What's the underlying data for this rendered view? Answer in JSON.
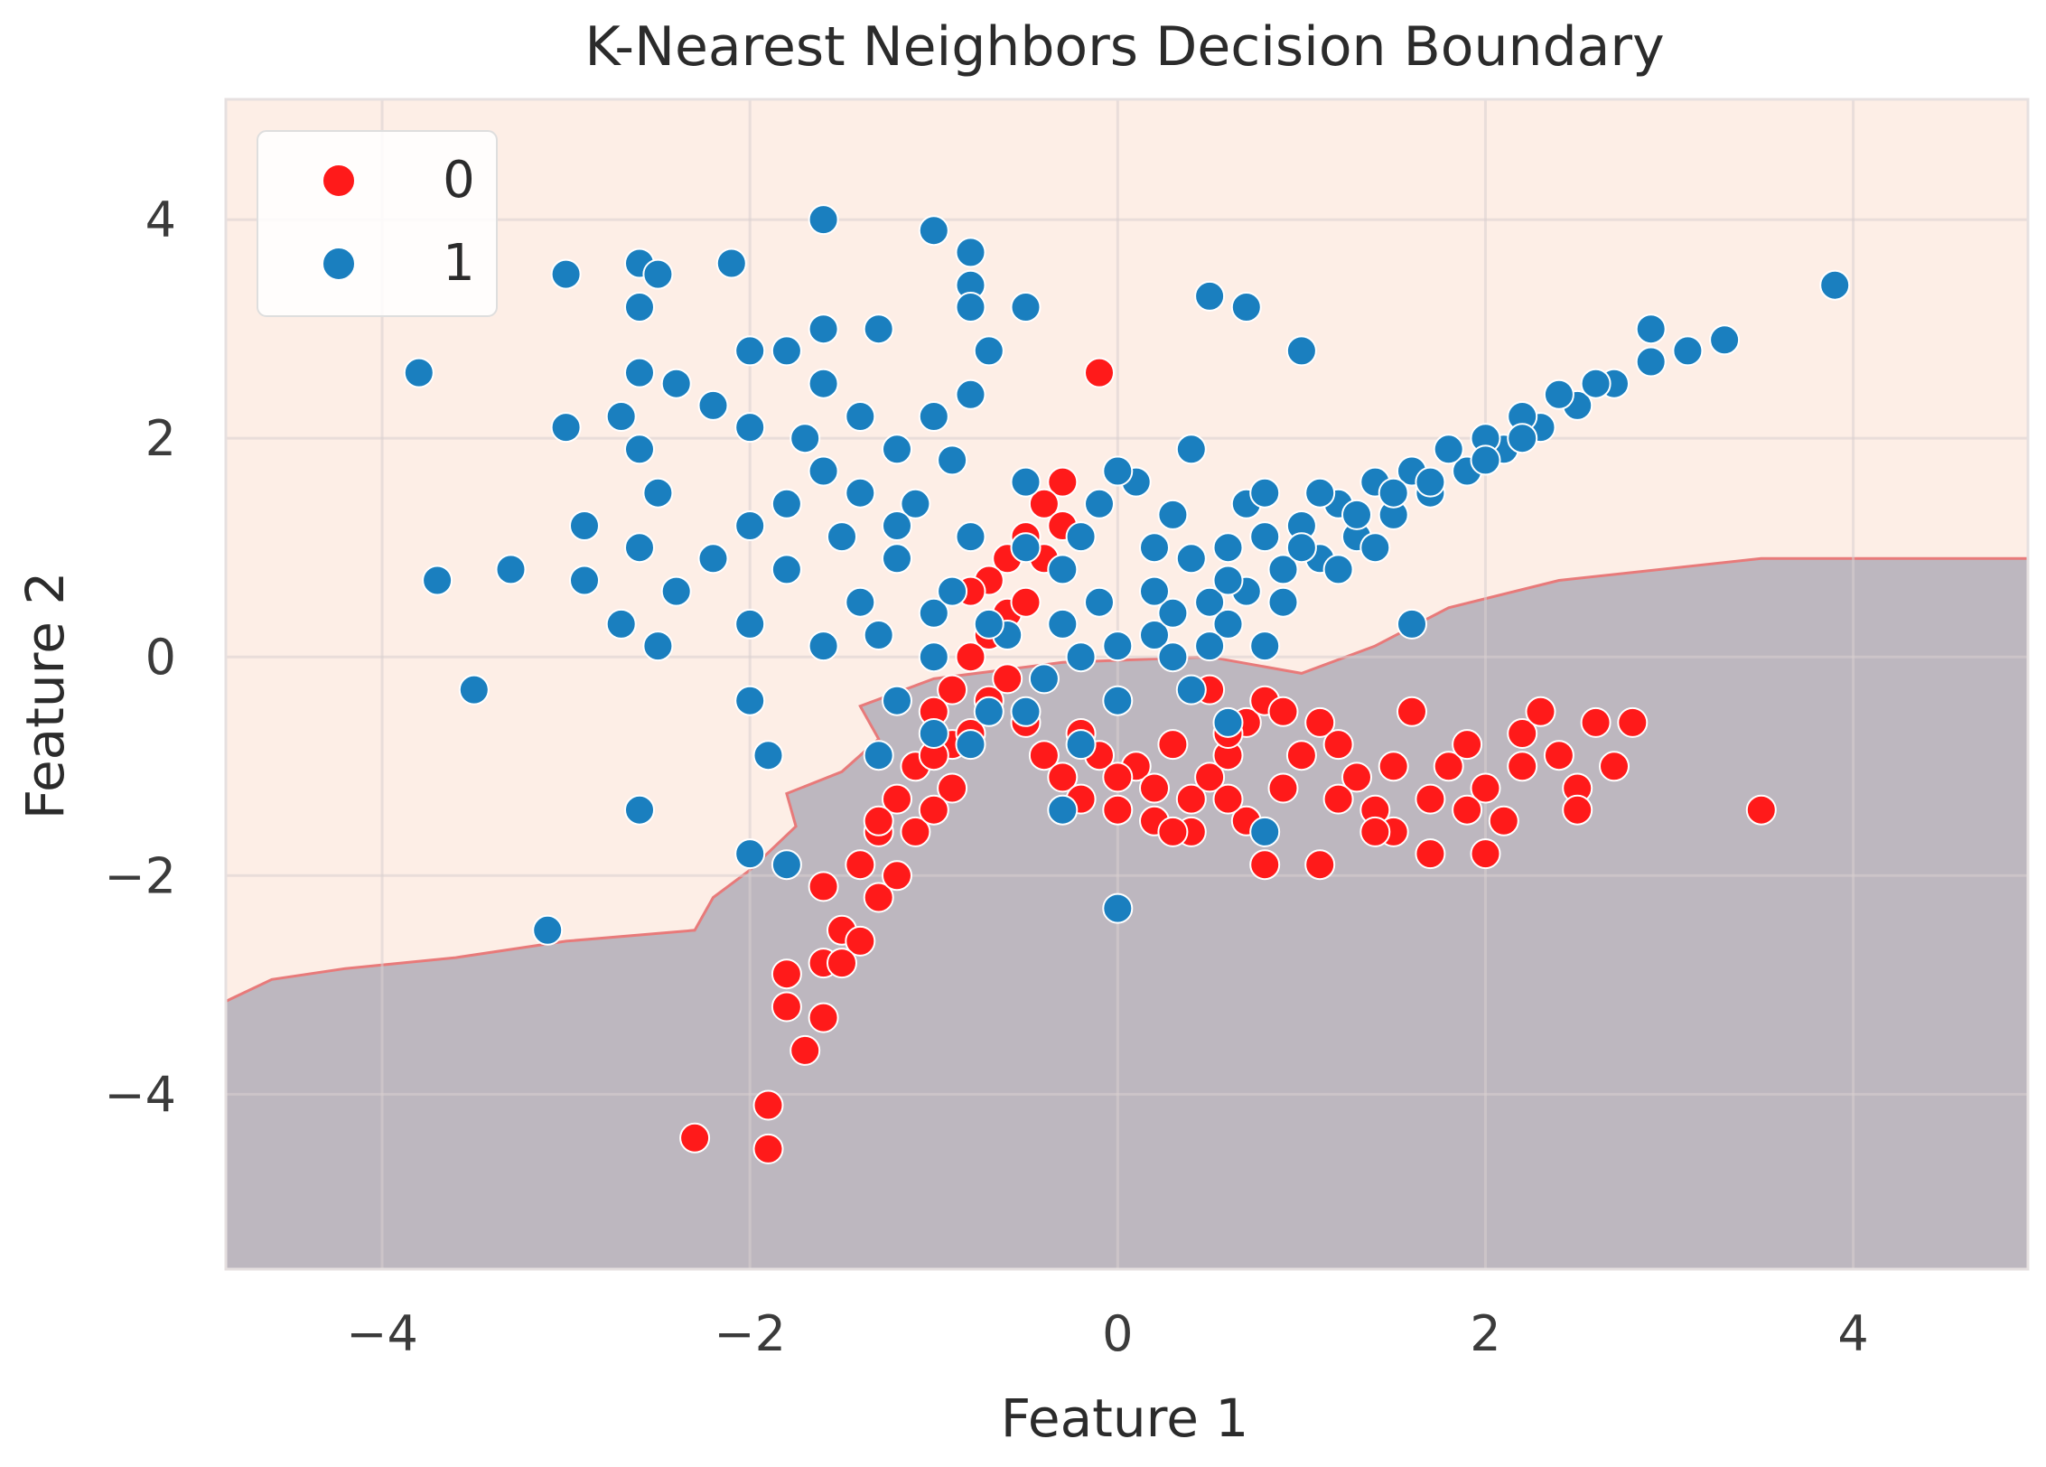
{
  "chart_data": {
    "type": "scatter",
    "title": "K-Nearest Neighbors Decision Boundary",
    "xlabel": "Feature 1",
    "ylabel": "Feature 2",
    "xlim": [
      -4.85,
      4.95
    ],
    "ylim": [
      -5.6,
      5.1
    ],
    "xticks": [
      -4,
      -2,
      0,
      2,
      4
    ],
    "yticks": [
      -4,
      -2,
      0,
      2,
      4
    ],
    "xtick_labels": [
      "−4",
      "−2",
      "0",
      "2",
      "4"
    ],
    "ytick_labels": [
      "−4",
      "−2",
      "0",
      "2",
      "4"
    ],
    "grid": true,
    "legend_position": "top-left",
    "colors": {
      "class_0": "#ff1a1a",
      "class_1": "#1a7fbf",
      "region_class_1": "#fdeee6",
      "region_class_0": "#bdb7bf",
      "boundary": "#e87a7a",
      "grid": "#d9cfcf"
    },
    "decision_boundary": [
      [
        -4.85,
        -3.15
      ],
      [
        -4.6,
        -2.95
      ],
      [
        -4.2,
        -2.85
      ],
      [
        -3.6,
        -2.75
      ],
      [
        -3.0,
        -2.6
      ],
      [
        -2.3,
        -2.5
      ],
      [
        -2.2,
        -2.2
      ],
      [
        -2.0,
        -1.95
      ],
      [
        -1.75,
        -1.55
      ],
      [
        -1.8,
        -1.25
      ],
      [
        -1.5,
        -1.05
      ],
      [
        -1.3,
        -0.75
      ],
      [
        -1.4,
        -0.45
      ],
      [
        -1.0,
        -0.2
      ],
      [
        -0.3,
        -0.05
      ],
      [
        0.5,
        0.0
      ],
      [
        1.0,
        -0.15
      ],
      [
        1.4,
        0.1
      ],
      [
        1.8,
        0.45
      ],
      [
        2.4,
        0.7
      ],
      [
        3.5,
        0.9
      ],
      [
        4.95,
        0.9
      ]
    ],
    "series": [
      {
        "name": "0",
        "color": "#ff1a1a",
        "points": [
          [
            -0.1,
            2.6
          ],
          [
            -0.3,
            1.6
          ],
          [
            -0.4,
            1.4
          ],
          [
            -0.5,
            1.1
          ],
          [
            -0.6,
            0.9
          ],
          [
            -0.7,
            0.7
          ],
          [
            -0.8,
            0.6
          ],
          [
            -0.6,
            0.4
          ],
          [
            -0.7,
            0.2
          ],
          [
            -0.8,
            0.0
          ],
          [
            -0.9,
            -0.3
          ],
          [
            -1.0,
            -0.5
          ],
          [
            -0.9,
            -0.8
          ],
          [
            -1.1,
            -1.0
          ],
          [
            -1.2,
            -1.3
          ],
          [
            -1.3,
            -1.6
          ],
          [
            -1.4,
            -1.9
          ],
          [
            -1.3,
            -2.2
          ],
          [
            -1.5,
            -2.5
          ],
          [
            -1.6,
            -2.8
          ],
          [
            -1.8,
            -2.9
          ],
          [
            -1.8,
            -3.2
          ],
          [
            -1.6,
            -3.3
          ],
          [
            -1.7,
            -3.6
          ],
          [
            -1.9,
            -4.1
          ],
          [
            -1.9,
            -4.5
          ],
          [
            -2.3,
            -4.4
          ],
          [
            -1.4,
            -2.6
          ],
          [
            -1.2,
            -2.0
          ],
          [
            -1.1,
            -1.6
          ],
          [
            -0.9,
            -1.2
          ],
          [
            -1.0,
            -0.9
          ],
          [
            -0.8,
            -0.7
          ],
          [
            -0.7,
            -0.4
          ],
          [
            -0.5,
            0.5
          ],
          [
            -0.4,
            0.9
          ],
          [
            -0.3,
            1.2
          ],
          [
            -0.5,
            -0.6
          ],
          [
            -0.4,
            -0.9
          ],
          [
            -0.3,
            -1.1
          ],
          [
            -0.2,
            -1.3
          ],
          [
            0.0,
            -1.4
          ],
          [
            0.2,
            -1.5
          ],
          [
            0.4,
            -1.3
          ],
          [
            0.5,
            -1.1
          ],
          [
            0.6,
            -0.9
          ],
          [
            0.7,
            -0.6
          ],
          [
            0.8,
            -0.4
          ],
          [
            0.5,
            -0.3
          ],
          [
            0.6,
            -0.7
          ],
          [
            0.3,
            -0.8
          ],
          [
            0.1,
            -1.0
          ],
          [
            -0.1,
            -0.9
          ],
          [
            0.2,
            -1.2
          ],
          [
            0.4,
            -1.6
          ],
          [
            0.7,
            -1.5
          ],
          [
            0.9,
            -1.2
          ],
          [
            1.0,
            -0.9
          ],
          [
            1.1,
            -0.6
          ],
          [
            1.2,
            -0.8
          ],
          [
            1.3,
            -1.1
          ],
          [
            1.4,
            -1.4
          ],
          [
            1.5,
            -1.6
          ],
          [
            1.7,
            -1.3
          ],
          [
            1.8,
            -1.0
          ],
          [
            1.9,
            -0.8
          ],
          [
            2.0,
            -1.2
          ],
          [
            2.1,
            -1.5
          ],
          [
            2.2,
            -0.7
          ],
          [
            2.3,
            -0.5
          ],
          [
            2.4,
            -0.9
          ],
          [
            2.5,
            -1.2
          ],
          [
            2.6,
            -0.6
          ],
          [
            2.8,
            -0.6
          ],
          [
            2.7,
            -1.0
          ],
          [
            2.5,
            -1.4
          ],
          [
            2.0,
            -1.8
          ],
          [
            1.7,
            -1.8
          ],
          [
            1.4,
            -1.6
          ],
          [
            1.1,
            -1.9
          ],
          [
            0.8,
            -1.9
          ],
          [
            1.6,
            -0.5
          ],
          [
            0.9,
            -0.5
          ],
          [
            1.2,
            -1.3
          ],
          [
            0.3,
            -1.6
          ],
          [
            0.0,
            -1.1
          ],
          [
            -0.2,
            -0.7
          ],
          [
            3.5,
            -1.4
          ],
          [
            1.5,
            -1.0
          ],
          [
            1.9,
            -1.4
          ],
          [
            2.2,
            -1.0
          ],
          [
            0.6,
            -1.3
          ],
          [
            -0.6,
            -0.2
          ],
          [
            -1.3,
            -1.5
          ],
          [
            -1.6,
            -2.1
          ],
          [
            -1.5,
            -2.8
          ],
          [
            -1.0,
            -1.4
          ]
        ]
      },
      {
        "name": "1",
        "color": "#1a7fbf",
        "points": [
          [
            -1.6,
            4.0
          ],
          [
            -1.0,
            3.9
          ],
          [
            -0.8,
            3.7
          ],
          [
            -2.6,
            3.6
          ],
          [
            -2.1,
            3.6
          ],
          [
            -3.0,
            3.5
          ],
          [
            -2.5,
            3.5
          ],
          [
            -0.8,
            3.4
          ],
          [
            -2.6,
            3.2
          ],
          [
            -0.8,
            3.2
          ],
          [
            -0.5,
            3.2
          ],
          [
            -1.6,
            3.0
          ],
          [
            -1.3,
            3.0
          ],
          [
            -0.7,
            2.8
          ],
          [
            -2.0,
            2.8
          ],
          [
            -1.8,
            2.8
          ],
          [
            -3.8,
            2.6
          ],
          [
            -2.6,
            2.6
          ],
          [
            -2.4,
            2.5
          ],
          [
            -1.6,
            2.5
          ],
          [
            -0.8,
            2.4
          ],
          [
            -2.2,
            2.3
          ],
          [
            -1.4,
            2.2
          ],
          [
            -1.0,
            2.2
          ],
          [
            -2.7,
            2.2
          ],
          [
            -3.0,
            2.1
          ],
          [
            -2.0,
            2.1
          ],
          [
            -1.7,
            2.0
          ],
          [
            -2.6,
            1.9
          ],
          [
            -1.2,
            1.9
          ],
          [
            -0.9,
            1.8
          ],
          [
            -1.6,
            1.7
          ],
          [
            -0.5,
            1.6
          ],
          [
            -2.5,
            1.5
          ],
          [
            -1.8,
            1.4
          ],
          [
            -1.1,
            1.4
          ],
          [
            -2.9,
            1.2
          ],
          [
            -2.0,
            1.2
          ],
          [
            -1.5,
            1.1
          ],
          [
            -0.8,
            1.1
          ],
          [
            -2.6,
            1.0
          ],
          [
            -1.2,
            0.9
          ],
          [
            -2.2,
            0.9
          ],
          [
            -1.8,
            0.8
          ],
          [
            -3.3,
            0.8
          ],
          [
            -3.7,
            0.7
          ],
          [
            -2.9,
            0.7
          ],
          [
            -2.4,
            0.6
          ],
          [
            -1.4,
            0.5
          ],
          [
            -1.0,
            0.4
          ],
          [
            -2.7,
            0.3
          ],
          [
            -2.0,
            0.3
          ],
          [
            -2.5,
            0.1
          ],
          [
            -1.6,
            0.1
          ],
          [
            -1.0,
            0.0
          ],
          [
            -1.2,
            -0.4
          ],
          [
            -2.0,
            -0.4
          ],
          [
            -3.5,
            -0.3
          ],
          [
            -1.3,
            -0.9
          ],
          [
            -1.0,
            -0.7
          ],
          [
            -1.9,
            -0.9
          ],
          [
            -2.6,
            -1.4
          ],
          [
            -2.0,
            -1.8
          ],
          [
            -1.8,
            -1.9
          ],
          [
            -3.1,
            -2.5
          ],
          [
            0.0,
            -2.3
          ],
          [
            -0.7,
            -0.5
          ],
          [
            -0.4,
            -0.2
          ],
          [
            -0.2,
            0.0
          ],
          [
            0.0,
            0.1
          ],
          [
            0.2,
            0.2
          ],
          [
            0.3,
            0.4
          ],
          [
            0.5,
            0.5
          ],
          [
            0.7,
            0.6
          ],
          [
            0.9,
            0.8
          ],
          [
            1.1,
            0.9
          ],
          [
            1.3,
            1.1
          ],
          [
            1.5,
            1.3
          ],
          [
            1.7,
            1.5
          ],
          [
            1.9,
            1.7
          ],
          [
            2.1,
            1.9
          ],
          [
            2.3,
            2.1
          ],
          [
            2.5,
            2.3
          ],
          [
            2.7,
            2.5
          ],
          [
            2.9,
            2.7
          ],
          [
            3.1,
            2.8
          ],
          [
            3.3,
            2.9
          ],
          [
            2.9,
            3.0
          ],
          [
            3.9,
            3.4
          ],
          [
            0.4,
            0.9
          ],
          [
            0.6,
            1.0
          ],
          [
            0.8,
            1.1
          ],
          [
            1.0,
            1.2
          ],
          [
            1.2,
            1.4
          ],
          [
            1.4,
            1.6
          ],
          [
            1.6,
            1.7
          ],
          [
            1.8,
            1.9
          ],
          [
            2.0,
            2.0
          ],
          [
            2.2,
            2.2
          ],
          [
            2.4,
            2.4
          ],
          [
            2.6,
            2.5
          ],
          [
            0.7,
            1.4
          ],
          [
            0.4,
            1.9
          ],
          [
            0.1,
            1.6
          ],
          [
            -0.1,
            1.4
          ],
          [
            -0.3,
            0.8
          ],
          [
            0.2,
            1.0
          ],
          [
            0.5,
            3.3
          ],
          [
            0.7,
            3.2
          ],
          [
            1.0,
            2.8
          ],
          [
            0.0,
            1.7
          ],
          [
            0.3,
            0.0
          ],
          [
            0.6,
            0.3
          ],
          [
            0.9,
            0.5
          ],
          [
            1.2,
            0.8
          ],
          [
            1.4,
            1.0
          ],
          [
            0.8,
            1.5
          ],
          [
            -0.6,
            0.2
          ],
          [
            -0.3,
            0.3
          ],
          [
            0.0,
            -0.4
          ],
          [
            0.5,
            0.1
          ],
          [
            0.2,
            0.6
          ],
          [
            0.8,
            0.1
          ],
          [
            1.0,
            1.0
          ],
          [
            1.1,
            1.5
          ],
          [
            1.3,
            1.3
          ],
          [
            1.5,
            1.5
          ],
          [
            1.7,
            1.6
          ],
          [
            2.0,
            1.8
          ],
          [
            2.2,
            2.0
          ],
          [
            1.6,
            0.3
          ],
          [
            0.4,
            -0.3
          ],
          [
            0.6,
            -0.6
          ],
          [
            0.8,
            -1.6
          ],
          [
            -0.2,
            -0.8
          ],
          [
            -0.3,
            -1.4
          ],
          [
            -0.8,
            -0.8
          ],
          [
            -0.5,
            -0.5
          ],
          [
            -0.9,
            0.6
          ],
          [
            -0.7,
            0.3
          ],
          [
            -1.2,
            1.2
          ],
          [
            -1.4,
            1.5
          ],
          [
            -1.3,
            0.2
          ],
          [
            -0.5,
            1.0
          ],
          [
            -0.2,
            1.1
          ],
          [
            -0.1,
            0.5
          ],
          [
            0.3,
            1.3
          ],
          [
            0.6,
            0.7
          ]
        ]
      }
    ]
  }
}
